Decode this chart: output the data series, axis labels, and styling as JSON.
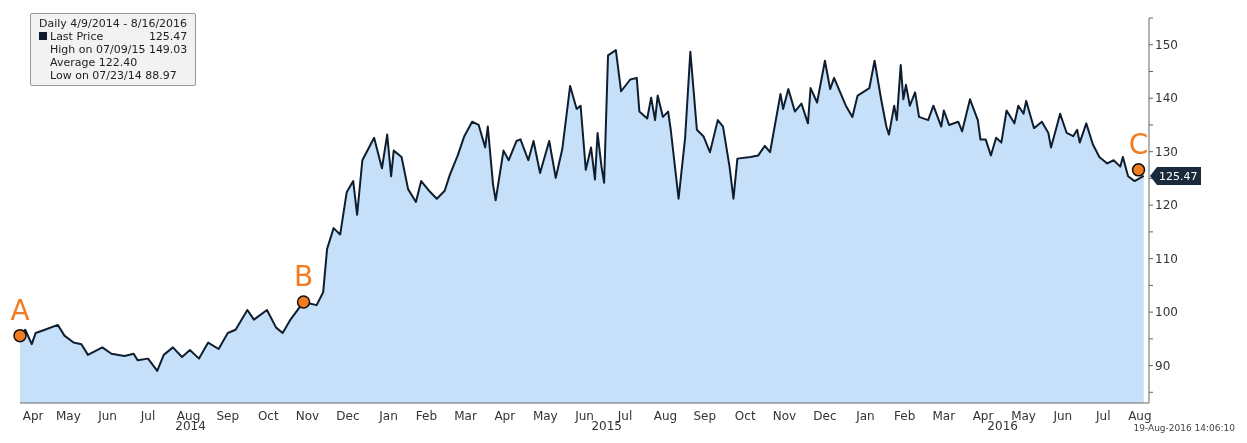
{
  "chart_data": {
    "type": "area",
    "legend_title": "Daily 4/9/2014 - 8/16/2016",
    "legend": "top left",
    "x": [
      "2014-04-09",
      "2014-04-13",
      "2014-04-18",
      "2014-04-21",
      "2014-04-28",
      "2014-05-08",
      "2014-05-13",
      "2014-05-20",
      "2014-05-26",
      "2014-05-31",
      "2014-06-11",
      "2014-06-18",
      "2014-06-28",
      "2014-07-05",
      "2014-07-08",
      "2014-07-16",
      "2014-07-23",
      "2014-07-28",
      "2014-08-04",
      "2014-08-11",
      "2014-08-17",
      "2014-08-24",
      "2014-08-31",
      "2014-09-08",
      "2014-09-15",
      "2014-09-21",
      "2014-09-30",
      "2014-10-05",
      "2014-10-15",
      "2014-10-22",
      "2014-10-27",
      "2014-11-02",
      "2014-11-12",
      "2014-11-22",
      "2014-11-27",
      "2014-11-30",
      "2014-12-05",
      "2014-12-10",
      "2014-12-15",
      "2014-12-20",
      "2014-12-23",
      "2014-12-27",
      "2015-01-05",
      "2015-01-11",
      "2015-01-15",
      "2015-01-18",
      "2015-01-20",
      "2015-01-26",
      "2015-01-31",
      "2015-02-06",
      "2015-02-10",
      "2015-02-16",
      "2015-02-22",
      "2015-02-28",
      "2015-03-04",
      "2015-03-10",
      "2015-03-15",
      "2015-03-21",
      "2015-03-26",
      "2015-03-31",
      "2015-04-02",
      "2015-04-06",
      "2015-04-08",
      "2015-04-14",
      "2015-04-18",
      "2015-04-24",
      "2015-04-27",
      "2015-05-03",
      "2015-05-07",
      "2015-05-12",
      "2015-05-19",
      "2015-05-24",
      "2015-05-29",
      "2015-06-04",
      "2015-06-09",
      "2015-06-12",
      "2015-06-16",
      "2015-06-20",
      "2015-06-23",
      "2015-06-25",
      "2015-06-28",
      "2015-06-30",
      "2015-07-03",
      "2015-07-09",
      "2015-07-13",
      "2015-07-20",
      "2015-07-25",
      "2015-07-27",
      "2015-08-02",
      "2015-08-05",
      "2015-08-08",
      "2015-08-10",
      "2015-08-14",
      "2015-08-18",
      "2015-08-20",
      "2015-08-26",
      "2015-08-31",
      "2015-09-04",
      "2015-09-09",
      "2015-09-14",
      "2015-09-19",
      "2015-09-25",
      "2015-09-29",
      "2015-10-04",
      "2015-10-07",
      "2015-10-10",
      "2015-10-20",
      "2015-10-26",
      "2015-10-31",
      "2015-11-04",
      "2015-11-12",
      "2015-11-14",
      "2015-11-18",
      "2015-11-23",
      "2015-11-28",
      "2015-12-03",
      "2015-12-05",
      "2015-12-10",
      "2015-12-16",
      "2015-12-20",
      "2015-12-23",
      "2016-01-01",
      "2016-01-06",
      "2016-01-10",
      "2016-01-19",
      "2016-01-23",
      "2016-01-28",
      "2016-02-01",
      "2016-02-03",
      "2016-02-07",
      "2016-02-09",
      "2016-02-12",
      "2016-02-14",
      "2016-02-16",
      "2016-02-19",
      "2016-02-23",
      "2016-02-26",
      "2016-03-04",
      "2016-03-08",
      "2016-03-14",
      "2016-03-16",
      "2016-03-20",
      "2016-03-27",
      "2016-03-30",
      "2016-04-05",
      "2016-04-11",
      "2016-04-13",
      "2016-04-17",
      "2016-04-21",
      "2016-04-25",
      "2016-04-29",
      "2016-05-03",
      "2016-05-09",
      "2016-05-12",
      "2016-05-16",
      "2016-05-18",
      "2016-05-24",
      "2016-05-30",
      "2016-06-04",
      "2016-06-06",
      "2016-06-10",
      "2016-06-13",
      "2016-06-18",
      "2016-06-23",
      "2016-06-26",
      "2016-06-28",
      "2016-07-03",
      "2016-07-08",
      "2016-07-13",
      "2016-07-19",
      "2016-07-24",
      "2016-07-29",
      "2016-07-31",
      "2016-08-04",
      "2016-08-09",
      "2016-08-16"
    ],
    "series": [
      {
        "name": "Last Price",
        "color": "#c6e0fa",
        "values": [
          95.6,
          96.7,
          94.0,
          96.1,
          96.7,
          97.6,
          95.6,
          94.3,
          94.0,
          92.0,
          93.4,
          92.2,
          91.8,
          92.2,
          91.0,
          91.3,
          89.0,
          92.0,
          93.4,
          91.6,
          92.9,
          91.3,
          94.3,
          93.1,
          96.1,
          96.7,
          100.4,
          98.6,
          100.4,
          97.1,
          96.1,
          98.6,
          101.9,
          101.3,
          103.7,
          111.8,
          115.7,
          114.5,
          122.4,
          124.5,
          118.2,
          128.4,
          132.6,
          126.9,
          133.2,
          125.4,
          130.2,
          129.0,
          123.0,
          120.6,
          124.5,
          122.7,
          121.2,
          122.7,
          125.7,
          129.3,
          132.9,
          135.6,
          135.0,
          130.8,
          134.7,
          123.9,
          120.9,
          130.2,
          128.4,
          132.0,
          132.3,
          128.4,
          132.0,
          126.0,
          132.0,
          125.1,
          130.5,
          142.3,
          138.0,
          138.6,
          126.6,
          130.8,
          124.8,
          133.5,
          127.2,
          124.2,
          148.0,
          149.0,
          141.3,
          143.5,
          143.8,
          137.5,
          136.2,
          140.1,
          135.9,
          140.5,
          136.5,
          137.5,
          134.1,
          121.2,
          132.6,
          148.7,
          134.1,
          132.9,
          129.9,
          135.9,
          134.7,
          127.2,
          121.2,
          128.7,
          129.0,
          129.3,
          131.1,
          129.9,
          140.8,
          138.0,
          141.7,
          137.5,
          139.0,
          135.3,
          141.9,
          139.2,
          147.0,
          141.7,
          143.8,
          138.6,
          136.5,
          140.5,
          141.9,
          147.0,
          139.8,
          134.7,
          133.2,
          138.6,
          135.9,
          146.2,
          139.8,
          142.5,
          138.6,
          141.1,
          136.5,
          135.9,
          138.6,
          134.7,
          137.7,
          135.0,
          135.6,
          133.8,
          139.8,
          135.9,
          132.3,
          132.3,
          129.3,
          132.6,
          131.7,
          137.7,
          135.3,
          138.6,
          137.1,
          139.5,
          134.4,
          135.6,
          133.5,
          130.8,
          134.4,
          137.1,
          133.5,
          132.9,
          134.1,
          131.7,
          135.3,
          131.4,
          129.0,
          127.8,
          128.4,
          127.2,
          129.0,
          125.4,
          124.5,
          125.47
        ],
        "value_labels": [
          null,
          null,
          null,
          null,
          null,
          null,
          null,
          null,
          null,
          null,
          null,
          null,
          null,
          null,
          null,
          null,
          null,
          null,
          null,
          null,
          null,
          null,
          null,
          null,
          null,
          null,
          null,
          null,
          null,
          null,
          null,
          null,
          null,
          null,
          null,
          null,
          null,
          null,
          null,
          null,
          null,
          null,
          null,
          null,
          null,
          null,
          null,
          null,
          null,
          null,
          null,
          null,
          null,
          null,
          null,
          null,
          null,
          null,
          null,
          null,
          null,
          null,
          null,
          null,
          null,
          null,
          null,
          null,
          null,
          null,
          null,
          null,
          null,
          null,
          null,
          null,
          null,
          null,
          null,
          null,
          null,
          null,
          null,
          null,
          null,
          null,
          null,
          null,
          null,
          null,
          null,
          null,
          null,
          null,
          null,
          null,
          null,
          null,
          null,
          null,
          null,
          null,
          null,
          null,
          null,
          null,
          null,
          null,
          null,
          null,
          null,
          null,
          null,
          null,
          null,
          null,
          null,
          null,
          null,
          null,
          null,
          null,
          null,
          null,
          null,
          null,
          null,
          null,
          null,
          null,
          null,
          null,
          null,
          null,
          null,
          null,
          null,
          null,
          null,
          null,
          null,
          null,
          null,
          null,
          null,
          null,
          null,
          null,
          null,
          null,
          null,
          null,
          null,
          null,
          null,
          null,
          null,
          null,
          null,
          null,
          null,
          null,
          null,
          null,
          null,
          null,
          null,
          null,
          null,
          null,
          null,
          null,
          null,
          null,
          null,
          "125.47"
        ]
      }
    ],
    "xlim": [
      "2014-04-09",
      "2016-08-20"
    ],
    "xticks": [
      {
        "value": "2014-04-19",
        "label": "Apr"
      },
      {
        "value": "2014-05-16",
        "label": "May"
      },
      {
        "value": "2014-06-15",
        "label": "Jun"
      },
      {
        "value": "2014-07-16",
        "label": "Jul"
      },
      {
        "value": "2014-08-16",
        "label": "Aug"
      },
      {
        "value": "2014-09-15",
        "label": "Sep"
      },
      {
        "value": "2014-10-16",
        "label": "Oct"
      },
      {
        "value": "2014-11-15",
        "label": "Nov"
      },
      {
        "value": "2014-12-16",
        "label": "Dec"
      },
      {
        "value": "2015-01-16",
        "label": "Jan"
      },
      {
        "value": "2015-02-14",
        "label": "Feb"
      },
      {
        "value": "2015-03-16",
        "label": "Mar"
      },
      {
        "value": "2015-04-15",
        "label": "Apr"
      },
      {
        "value": "2015-05-16",
        "label": "May"
      },
      {
        "value": "2015-06-15",
        "label": "Jun"
      },
      {
        "value": "2015-07-16",
        "label": "Jul"
      },
      {
        "value": "2015-08-16",
        "label": "Aug"
      },
      {
        "value": "2015-09-15",
        "label": "Sep"
      },
      {
        "value": "2015-10-16",
        "label": "Oct"
      },
      {
        "value": "2015-11-15",
        "label": "Nov"
      },
      {
        "value": "2015-12-16",
        "label": "Dec"
      },
      {
        "value": "2016-01-16",
        "label": "Jan"
      },
      {
        "value": "2016-02-15",
        "label": "Feb"
      },
      {
        "value": "2016-03-16",
        "label": "Mar"
      },
      {
        "value": "2016-04-15",
        "label": "Apr"
      },
      {
        "value": "2016-05-16",
        "label": "May"
      },
      {
        "value": "2016-06-15",
        "label": "Jun"
      },
      {
        "value": "2016-07-16",
        "label": "Jul"
      },
      {
        "value": "2016-08-13",
        "label": "Aug"
      }
    ],
    "ylim": [
      83,
      155
    ],
    "yticks": [
      {
        "value": 85,
        "label": null
      },
      90,
      {
        "value": 95,
        "label": null
      },
      100,
      {
        "value": 105,
        "label": null
      },
      110,
      {
        "value": 115,
        "label": null
      },
      120,
      {
        "value": 125,
        "label": null
      },
      130,
      {
        "value": 135,
        "label": null
      },
      140,
      {
        "value": 145,
        "label": null
      },
      150,
      {
        "value": 155,
        "label": null
      }
    ],
    "annotations": [
      "125.47",
      "High on 07/09/15 149.03",
      "Average 122.40",
      "Low on 07/23/14 88.97",
      "19-Aug-2016 14:06:10",
      "2014",
      "2015",
      "2016",
      {
        "text": "A",
        "x": "2014-04-09",
        "y": 95.6
      },
      {
        "text": "B",
        "x": "2014-11-12",
        "y": 101.9
      },
      {
        "text": "C",
        "x": "2016-08-12",
        "y": 126.6
      }
    ]
  }
}
